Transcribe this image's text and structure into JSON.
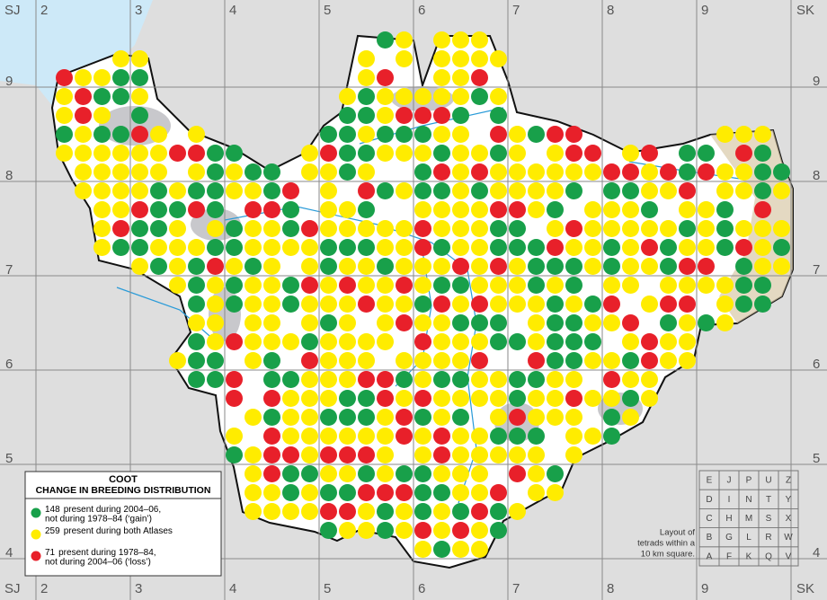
{
  "grid": {
    "corner_top_left": "SJ",
    "corner_top_right": "SK",
    "columns": [
      "2",
      "3",
      "4",
      "5",
      "6",
      "7",
      "8",
      "9"
    ],
    "rows": [
      "9",
      "8",
      "7",
      "6",
      "5",
      "4"
    ]
  },
  "legend": {
    "title": "COOT",
    "subtitle": "CHANGE IN BREEDING DISTRIBUTION",
    "items": [
      {
        "count": 148,
        "label": "present during 2004–06, not during 1978–84 (‘gain’)",
        "color": "#18a04a"
      },
      {
        "count": 259,
        "label": "present during both Atlases",
        "color": "#ffec00"
      },
      {
        "count": 71,
        "label": "present during 1978–84, not during 2004–06 (‘loss’)",
        "color": "#e8202a"
      }
    ]
  },
  "tetrad_layout": {
    "rows": [
      [
        "E",
        "J",
        "P",
        "U",
        "Z"
      ],
      [
        "D",
        "I",
        "N",
        "T",
        "Y"
      ],
      [
        "C",
        "H",
        "M",
        "S",
        "X"
      ],
      [
        "B",
        "G",
        "L",
        "R",
        "W"
      ],
      [
        "A",
        "F",
        "K",
        "Q",
        "V"
      ]
    ],
    "caption": [
      "Layout of",
      "tetrads within a",
      "10 km square."
    ]
  }
}
